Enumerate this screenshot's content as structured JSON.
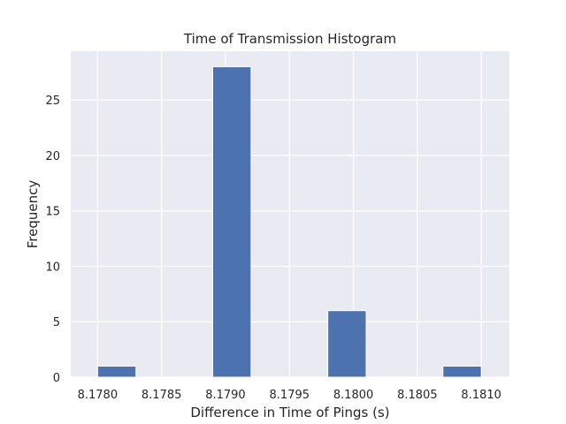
{
  "chart_data": {
    "type": "bar",
    "title": "Time of Transmission Histogram",
    "xlabel": "Difference in Time of Pings (s)",
    "ylabel": "Frequency",
    "xlim": [
      8.17779,
      8.18122
    ],
    "ylim": [
      0,
      29.4
    ],
    "xticks": [
      "8.1780",
      "8.1785",
      "8.1790",
      "8.1795",
      "8.1800",
      "8.1805",
      "8.1810"
    ],
    "yticks": [
      "0",
      "5",
      "10",
      "15",
      "20",
      "25"
    ],
    "bins": [
      {
        "start": 8.178,
        "end": 8.1783,
        "count": 1
      },
      {
        "start": 8.1789,
        "end": 8.1792,
        "count": 28
      },
      {
        "start": 8.1798,
        "end": 8.1801,
        "count": 6
      },
      {
        "start": 8.1807,
        "end": 8.181,
        "count": 1
      }
    ],
    "grid": true,
    "bar_color": "#4c72b0",
    "background_color": "#eaeaf2"
  }
}
